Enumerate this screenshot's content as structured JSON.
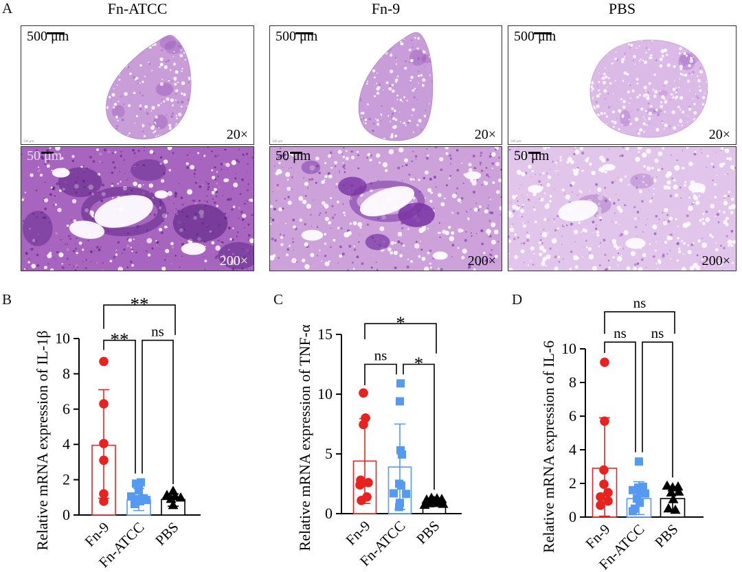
{
  "figure": {
    "panel_a": {
      "label": "A",
      "columns": [
        {
          "title": "Fn-ATCC",
          "top": {
            "scale_bar": "500 μm",
            "magnification": "20×",
            "micro_label": "500 μm"
          },
          "bottom": {
            "scale_bar": "50 μm",
            "magnification": "200×"
          }
        },
        {
          "title": "Fn-9",
          "top": {
            "scale_bar": "500 μm",
            "magnification": "20×",
            "micro_label": "500 μm"
          },
          "bottom": {
            "scale_bar": "50 μm",
            "magnification": "200×"
          }
        },
        {
          "title": "PBS",
          "top": {
            "scale_bar": "500 μm",
            "magnification": "20×",
            "micro_label": "500 μm"
          },
          "bottom": {
            "scale_bar": "50 μm",
            "magnification": "200×"
          }
        }
      ]
    }
  },
  "chart_data": [
    {
      "type": "bar",
      "panel": "B",
      "ylabel": "Relative mRNA expression of IL-1β",
      "ylim": [
        0,
        10
      ],
      "yticks": [
        0,
        2,
        4,
        6,
        8,
        10
      ],
      "categories": [
        "Fn-9",
        "Fn-ATCC",
        "PBS"
      ],
      "series": [
        {
          "name": "Fn-9",
          "marker": "circle",
          "color": "#e8231f",
          "bar_mean": 3.95,
          "sd_low": 0.95,
          "sd_high": 7.1,
          "points": [
            {
              "v": 8.7,
              "dx": 0
            },
            {
              "v": 6.3,
              "dx": 0
            },
            {
              "v": 4.05,
              "dx": 0
            },
            {
              "v": 3.1,
              "dx": 0
            },
            {
              "v": 1.2,
              "dx": 0
            },
            {
              "v": 0.78,
              "dx": 0
            }
          ]
        },
        {
          "name": "Fn-ATCC",
          "marker": "square",
          "color": "#549af3",
          "bar_mean": 0.85,
          "sd_low": 0.25,
          "sd_high": 1.5,
          "points": [
            {
              "v": 1.85,
              "dx": 3
            },
            {
              "v": 1.78,
              "dx": -4
            },
            {
              "v": 1.4,
              "dx": 0
            },
            {
              "v": 1.05,
              "dx": -11
            },
            {
              "v": 0.95,
              "dx": 7
            },
            {
              "v": 0.9,
              "dx": -4
            },
            {
              "v": 0.85,
              "dx": 11
            },
            {
              "v": 0.78,
              "dx": 2
            },
            {
              "v": 0.62,
              "dx": -6
            }
          ]
        },
        {
          "name": "PBS",
          "marker": "triangle",
          "color": "#000000",
          "bar_mean": 0.88,
          "sd_low": 0.5,
          "sd_high": 1.2,
          "points": [
            {
              "v": 1.35,
              "dx": 0
            },
            {
              "v": 1.12,
              "dx": -9
            },
            {
              "v": 1.05,
              "dx": 3
            },
            {
              "v": 0.98,
              "dx": 11
            },
            {
              "v": 0.9,
              "dx": -3
            },
            {
              "v": 0.55,
              "dx": 0
            }
          ]
        }
      ],
      "brackets": [
        {
          "a": 0,
          "b": 1,
          "y": 9.9,
          "leg_a": 9.35,
          "leg_b": 2.35,
          "xa": 0,
          "xb": -5,
          "label": "**"
        },
        {
          "a": 1,
          "b": 2,
          "y": 9.9,
          "leg_a": 2.35,
          "leg_b": 1.75,
          "xa": 5,
          "xb": 0,
          "label": "ns"
        },
        {
          "a": 0,
          "b": 2,
          "y": 11.9,
          "leg_a": 10.55,
          "leg_b": 10.2,
          "xa": 0,
          "xb": 3,
          "label": "**"
        }
      ]
    },
    {
      "type": "bar",
      "panel": "C",
      "ylabel": "Relative mRNA expression of TNF-α",
      "ylim": [
        0,
        15
      ],
      "yticks": [
        0,
        5,
        10,
        15
      ],
      "categories": [
        "Fn-9",
        "Fn-ATCC",
        "PBS"
      ],
      "series": [
        {
          "name": "Fn-9",
          "marker": "circle",
          "color": "#e8231f",
          "bar_mean": 4.4,
          "sd_low": 0.85,
          "sd_high": 7.95,
          "points": [
            {
              "v": 10.1,
              "dx": -2
            },
            {
              "v": 8.0,
              "dx": 1
            },
            {
              "v": 7.45,
              "dx": -2
            },
            {
              "v": 2.8,
              "dx": -6
            },
            {
              "v": 2.6,
              "dx": 5
            },
            {
              "v": 2.4,
              "dx": -7
            },
            {
              "v": 1.4,
              "dx": 3
            },
            {
              "v": 1.1,
              "dx": -5
            }
          ]
        },
        {
          "name": "Fn-ATCC",
          "marker": "square",
          "color": "#549af3",
          "bar_mean": 3.9,
          "sd_low": 0.35,
          "sd_high": 7.5,
          "points": [
            {
              "v": 10.9,
              "dx": 1
            },
            {
              "v": 9.4,
              "dx": 0
            },
            {
              "v": 5.3,
              "dx": 1
            },
            {
              "v": 4.95,
              "dx": 3
            },
            {
              "v": 2.5,
              "dx": -1
            },
            {
              "v": 2.35,
              "dx": 2
            },
            {
              "v": 1.7,
              "dx": -9
            },
            {
              "v": 1.65,
              "dx": 9
            },
            {
              "v": 0.9,
              "dx": 0
            },
            {
              "v": 0.55,
              "dx": -1
            }
          ]
        },
        {
          "name": "PBS",
          "marker": "triangle",
          "color": "#000000",
          "bar_mean": 0.95,
          "sd_low": 0.6,
          "sd_high": 1.3,
          "points": [
            {
              "v": 1.3,
              "dx": -4
            },
            {
              "v": 1.25,
              "dx": 4
            },
            {
              "v": 1.2,
              "dx": 11
            },
            {
              "v": 1.15,
              "dx": -11
            },
            {
              "v": 1.05,
              "dx": 0
            },
            {
              "v": 0.95,
              "dx": 7
            },
            {
              "v": 0.85,
              "dx": -7
            },
            {
              "v": 0.8,
              "dx": 13
            },
            {
              "v": 0.72,
              "dx": -14
            }
          ]
        }
      ],
      "brackets": [
        {
          "a": 0,
          "b": 1,
          "y": 12.5,
          "leg_a": 10.75,
          "leg_b": 11.65,
          "xa": 0,
          "xb": -5,
          "label": "ns"
        },
        {
          "a": 1,
          "b": 2,
          "y": 12.5,
          "leg_a": 11.65,
          "leg_b": 2.0,
          "xa": 5,
          "xb": 0,
          "label": "*"
        },
        {
          "a": 0,
          "b": 2,
          "y": 15.9,
          "leg_a": 14.6,
          "leg_b": 13.4,
          "xa": 0,
          "xb": 3,
          "label": "*"
        }
      ]
    },
    {
      "type": "bar",
      "panel": "D",
      "ylabel": "Relative mRNA expression of IL-6",
      "ylim": [
        0,
        10
      ],
      "yticks": [
        0,
        2,
        4,
        6,
        8,
        10
      ],
      "categories": [
        "Fn-9",
        "Fn-ATCC",
        "PBS"
      ],
      "series": [
        {
          "name": "Fn-9",
          "marker": "circle",
          "color": "#e8231f",
          "bar_mean": 2.9,
          "sd_low": 0.05,
          "sd_high": 5.9,
          "points": [
            {
              "v": 9.2,
              "dx": 0
            },
            {
              "v": 5.7,
              "dx": 0
            },
            {
              "v": 2.8,
              "dx": -1
            },
            {
              "v": 1.95,
              "dx": -1
            },
            {
              "v": 1.45,
              "dx": 5
            },
            {
              "v": 1.2,
              "dx": -6
            },
            {
              "v": 0.95,
              "dx": 5
            },
            {
              "v": 0.7,
              "dx": -6
            }
          ]
        },
        {
          "name": "Fn-ATCC",
          "marker": "square",
          "color": "#549af3",
          "bar_mean": 1.1,
          "sd_low": 0.15,
          "sd_high": 2.1,
          "points": [
            {
              "v": 3.3,
              "dx": 0
            },
            {
              "v": 1.8,
              "dx": 6
            },
            {
              "v": 1.75,
              "dx": -1
            },
            {
              "v": 1.6,
              "dx": -9
            },
            {
              "v": 1.5,
              "dx": 3
            },
            {
              "v": 1.4,
              "dx": 9
            },
            {
              "v": 1.1,
              "dx": -3
            },
            {
              "v": 0.85,
              "dx": 1
            },
            {
              "v": 0.5,
              "dx": -6
            },
            {
              "v": 0.35,
              "dx": -9
            }
          ]
        },
        {
          "name": "PBS",
          "marker": "triangle",
          "color": "#000000",
          "bar_mean": 1.1,
          "sd_low": 0.45,
          "sd_high": 1.8,
          "points": [
            {
              "v": 1.85,
              "dx": -8
            },
            {
              "v": 1.8,
              "dx": 8
            },
            {
              "v": 1.75,
              "dx": 0
            },
            {
              "v": 1.5,
              "dx": 9
            },
            {
              "v": 1.45,
              "dx": -2
            },
            {
              "v": 1.05,
              "dx": 1
            },
            {
              "v": 0.5,
              "dx": -6
            },
            {
              "v": 0.42,
              "dx": 4
            }
          ]
        }
      ],
      "brackets": [
        {
          "a": 0,
          "b": 1,
          "y": 10.4,
          "leg_a": 9.75,
          "leg_b": 3.85,
          "xa": 0,
          "xb": -5,
          "label": "ns"
        },
        {
          "a": 1,
          "b": 2,
          "y": 10.4,
          "leg_a": 3.85,
          "leg_b": 2.35,
          "xa": 5,
          "xb": 0,
          "label": "ns"
        },
        {
          "a": 0,
          "b": 2,
          "y": 12.2,
          "leg_a": 10.9,
          "leg_b": 10.9,
          "xa": 0,
          "xb": 3,
          "label": "ns"
        }
      ]
    }
  ]
}
